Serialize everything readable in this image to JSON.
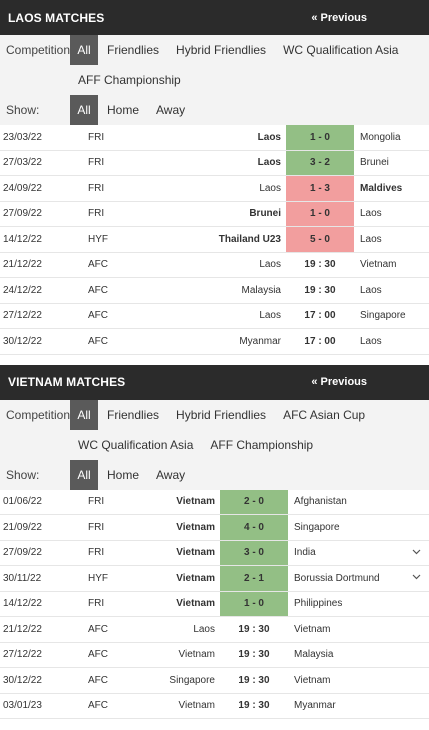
{
  "laos": {
    "title": "LAOS MATCHES",
    "previous": "« Previous",
    "competition_label": "Competition:",
    "competitions": [
      "All",
      "Friendlies",
      "Hybrid Friendlies",
      "WC Qualification Asia"
    ],
    "competitions_row2": [
      "AFF Championship"
    ],
    "show_label": "Show:",
    "show_options": [
      "All",
      "Home",
      "Away"
    ],
    "matches": [
      {
        "date": "23/03/22",
        "comp": "FRI",
        "home": "Laos",
        "score": "1 - 0",
        "away": "Mongolia",
        "result": "win",
        "bold": "home"
      },
      {
        "date": "27/03/22",
        "comp": "FRI",
        "home": "Laos",
        "score": "3 - 2",
        "away": "Brunei",
        "result": "win",
        "bold": "home"
      },
      {
        "date": "24/09/22",
        "comp": "FRI",
        "home": "Laos",
        "score": "1 - 3",
        "away": "Maldives",
        "result": "loss",
        "bold": "away"
      },
      {
        "date": "27/09/22",
        "comp": "FRI",
        "home": "Brunei",
        "score": "1 - 0",
        "away": "Laos",
        "result": "loss",
        "bold": "home"
      },
      {
        "date": "14/12/22",
        "comp": "HYF",
        "home": "Thailand U23",
        "score": "5 - 0",
        "away": "Laos",
        "result": "loss",
        "bold": "home"
      },
      {
        "date": "21/12/22",
        "comp": "AFC",
        "home": "Laos",
        "score": "19 : 30",
        "away": "Vietnam",
        "result": "",
        "bold": ""
      },
      {
        "date": "24/12/22",
        "comp": "AFC",
        "home": "Malaysia",
        "score": "19 : 30",
        "away": "Laos",
        "result": "",
        "bold": ""
      },
      {
        "date": "27/12/22",
        "comp": "AFC",
        "home": "Laos",
        "score": "17 : 00",
        "away": "Singapore",
        "result": "",
        "bold": ""
      },
      {
        "date": "30/12/22",
        "comp": "AFC",
        "home": "Myanmar",
        "score": "17 : 00",
        "away": "Laos",
        "result": "",
        "bold": ""
      }
    ]
  },
  "vietnam": {
    "title": "VIETNAM MATCHES",
    "previous": "« Previous",
    "competition_label": "Competition:",
    "competitions": [
      "All",
      "Friendlies",
      "Hybrid Friendlies",
      "AFC Asian Cup"
    ],
    "competitions_row2": [
      "WC Qualification Asia",
      "AFF Championship"
    ],
    "show_label": "Show:",
    "show_options": [
      "All",
      "Home",
      "Away"
    ],
    "matches": [
      {
        "date": "01/06/22",
        "comp": "FRI",
        "home": "Vietnam",
        "score": "2 - 0",
        "away": "Afghanistan",
        "result": "win",
        "bold": "home",
        "chevron": false
      },
      {
        "date": "21/09/22",
        "comp": "FRI",
        "home": "Vietnam",
        "score": "4 - 0",
        "away": "Singapore",
        "result": "win",
        "bold": "home",
        "chevron": false
      },
      {
        "date": "27/09/22",
        "comp": "FRI",
        "home": "Vietnam",
        "score": "3 - 0",
        "away": "India",
        "result": "win",
        "bold": "home",
        "chevron": true
      },
      {
        "date": "30/11/22",
        "comp": "HYF",
        "home": "Vietnam",
        "score": "2 - 1",
        "away": "Borussia Dortmund",
        "result": "win",
        "bold": "home",
        "chevron": true
      },
      {
        "date": "14/12/22",
        "comp": "FRI",
        "home": "Vietnam",
        "score": "1 - 0",
        "away": "Philippines",
        "result": "win",
        "bold": "home",
        "chevron": false
      },
      {
        "date": "21/12/22",
        "comp": "AFC",
        "home": "Laos",
        "score": "19 : 30",
        "away": "Vietnam",
        "result": "",
        "bold": "",
        "chevron": false
      },
      {
        "date": "27/12/22",
        "comp": "AFC",
        "home": "Vietnam",
        "score": "19 : 30",
        "away": "Malaysia",
        "result": "",
        "bold": "",
        "chevron": false
      },
      {
        "date": "30/12/22",
        "comp": "AFC",
        "home": "Singapore",
        "score": "19 : 30",
        "away": "Vietnam",
        "result": "",
        "bold": "",
        "chevron": false
      },
      {
        "date": "03/01/23",
        "comp": "AFC",
        "home": "Vietnam",
        "score": "19 : 30",
        "away": "Myanmar",
        "result": "",
        "bold": "",
        "chevron": false
      }
    ]
  },
  "icons": {
    "chevron": "chevron-down-icon"
  },
  "colors": {
    "header_bg": "#2b2b2b",
    "filter_bg": "#f3f3f3",
    "win": "#93bf85",
    "loss": "#f29e9e",
    "active_chip": "#5a5a5a"
  }
}
